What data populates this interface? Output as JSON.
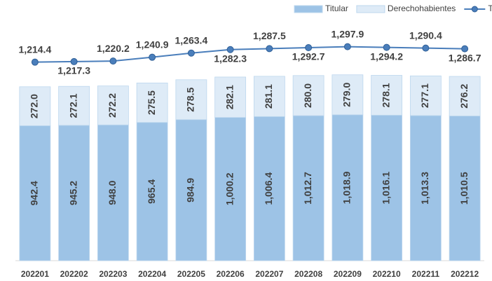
{
  "chart_data": {
    "type": "bar+line",
    "categories": [
      "202201",
      "202202",
      "202203",
      "202204",
      "202205",
      "202206",
      "202207",
      "202208",
      "202209",
      "202210",
      "202211",
      "202212"
    ],
    "series": [
      {
        "name": "Titular",
        "color": "#9dc3e6",
        "values": [
          942.4,
          945.2,
          948.0,
          965.4,
          984.9,
          1000.2,
          1006.4,
          1012.7,
          1018.9,
          1016.1,
          1013.3,
          1010.5
        ],
        "value_labels": [
          "942.4",
          "945.2",
          "948.0",
          "965.4",
          "984.9",
          "1,000.2",
          "1,006.4",
          "1,012.7",
          "1,018.9",
          "1,016.1",
          "1,013.3",
          "1,010.5"
        ]
      },
      {
        "name": "Derechohabientes",
        "color": "#deebf7",
        "values": [
          272.0,
          272.1,
          272.2,
          275.5,
          278.5,
          282.1,
          281.1,
          280.0,
          279.0,
          278.1,
          277.1,
          276.2
        ],
        "value_labels": [
          "272.0",
          "272.1",
          "272.2",
          "275.5",
          "278.5",
          "282.1",
          "281.1",
          "280.0",
          "279.0",
          "278.1",
          "277.1",
          "276.2"
        ]
      },
      {
        "name": "Total",
        "color": "#4a7ebb",
        "axis": "y2",
        "values": [
          1214.4,
          1217.3,
          1220.2,
          1240.9,
          1263.4,
          1282.3,
          1287.5,
          1292.7,
          1297.9,
          1294.2,
          1290.4,
          1286.7
        ],
        "value_labels": [
          "1,214.4",
          "1,217.3",
          "1,220.2",
          "1,240.9",
          "1,263.4",
          "1,282.3",
          "1,287.5",
          "1,292.7",
          "1,297.9",
          "1,294.2",
          "1,290.4",
          "1,286.7"
        ]
      }
    ],
    "ylim": [
      0,
      1600
    ],
    "y2lim": [
      140,
      1380
    ],
    "legend": "top-right"
  }
}
